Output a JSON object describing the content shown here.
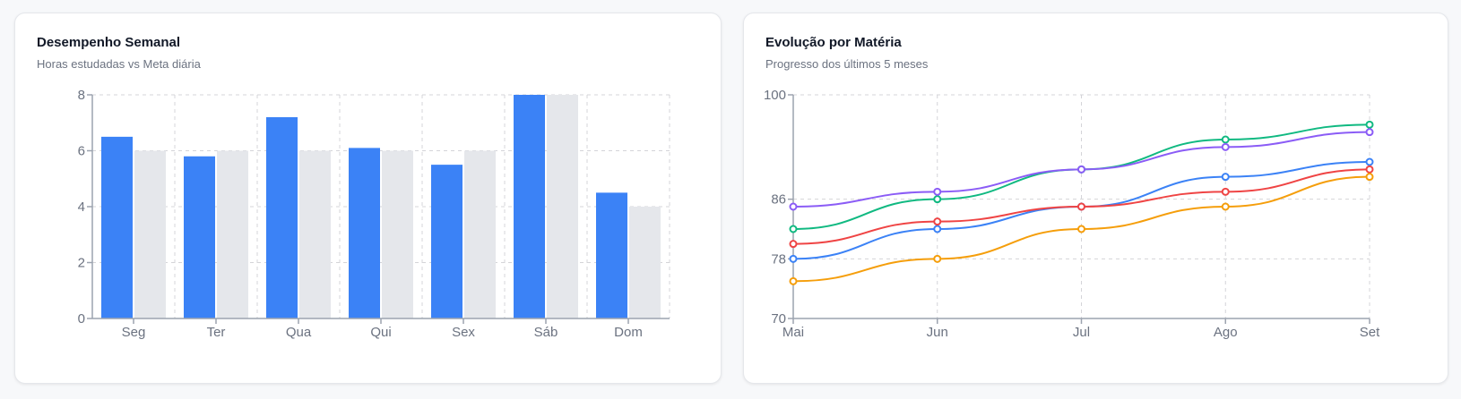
{
  "cards": [
    {
      "title": "Desempenho Semanal",
      "subtitle": "Horas estudadas vs Meta diária"
    },
    {
      "title": "Evolução por Matéria",
      "subtitle": "Progresso dos últimos 5 meses"
    }
  ],
  "chart_data": [
    {
      "type": "bar",
      "title": "Desempenho Semanal",
      "subtitle": "Horas estudadas vs Meta diária",
      "categories": [
        "Seg",
        "Ter",
        "Qua",
        "Qui",
        "Sex",
        "Sáb",
        "Dom"
      ],
      "series": [
        {
          "values": [
            6.5,
            5.8,
            7.2,
            6.1,
            5.5,
            8,
            4.5
          ],
          "color": "#3b82f6"
        },
        {
          "values": [
            6,
            6,
            6,
            6,
            6,
            8,
            4
          ],
          "color": "#e5e7eb"
        }
      ],
      "ylim": [
        0,
        8
      ],
      "yticks": [
        0,
        2,
        4,
        6,
        8
      ],
      "grid": true
    },
    {
      "type": "line",
      "title": "Evolução por Matéria",
      "subtitle": "Progresso dos últimos 5 meses",
      "x": [
        "Mai",
        "Jun",
        "Jul",
        "Ago",
        "Set"
      ],
      "series": [
        {
          "values": [
            82,
            86,
            90,
            94,
            96
          ],
          "color": "#10b981"
        },
        {
          "values": [
            85,
            87,
            90,
            93,
            95
          ],
          "color": "#8b5cf6"
        },
        {
          "values": [
            78,
            82,
            85,
            89,
            91
          ],
          "color": "#3b82f6"
        },
        {
          "values": [
            80,
            83,
            85,
            87,
            90
          ],
          "color": "#ef4444"
        },
        {
          "values": [
            75,
            78,
            82,
            85,
            89
          ],
          "color": "#f59e0b"
        }
      ],
      "ylim": [
        70,
        100
      ],
      "yticks": [
        70,
        78,
        86,
        100
      ],
      "grid": true
    }
  ]
}
